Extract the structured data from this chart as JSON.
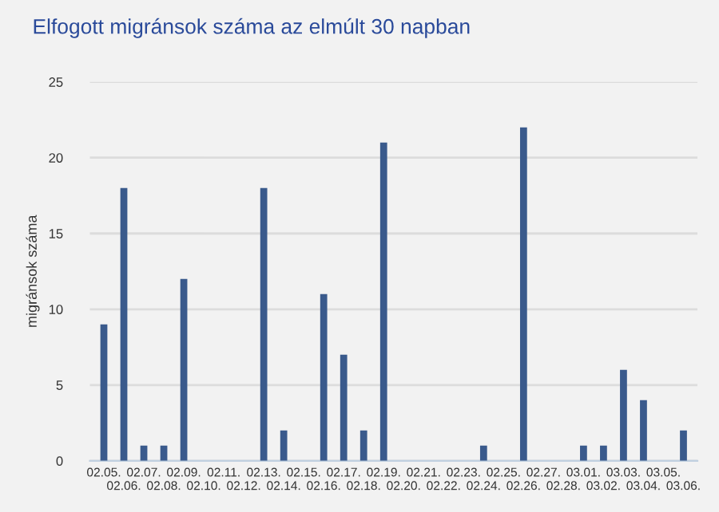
{
  "chart_data": {
    "type": "bar",
    "title": "Elfogott migránsok száma az elmúlt 30 napban",
    "ylabel": "migránsok száma",
    "categories": [
      "02.05.",
      "02.06.",
      "02.07.",
      "02.08.",
      "02.09.",
      "02.10.",
      "02.11.",
      "02.12.",
      "02.13.",
      "02.14.",
      "02.15.",
      "02.16.",
      "02.17.",
      "02.18.",
      "02.19.",
      "02.20.",
      "02.21.",
      "02.22.",
      "02.23.",
      "02.24.",
      "02.25.",
      "02.26.",
      "02.27.",
      "02.28.",
      "03.01.",
      "03.02.",
      "03.03.",
      "03.04.",
      "03.05.",
      "03.06."
    ],
    "values": [
      9,
      18,
      1,
      1,
      12,
      0,
      0,
      0,
      18,
      2,
      0,
      11,
      7,
      2,
      21,
      0,
      0,
      0,
      0,
      1,
      0,
      22,
      0,
      0,
      1,
      1,
      6,
      4,
      0,
      2
    ],
    "color": "#3a5a8c",
    "ylim": [
      0,
      25
    ],
    "yticks": [
      0,
      5,
      10,
      15,
      20,
      25
    ],
    "grid": "y",
    "legend": false
  }
}
